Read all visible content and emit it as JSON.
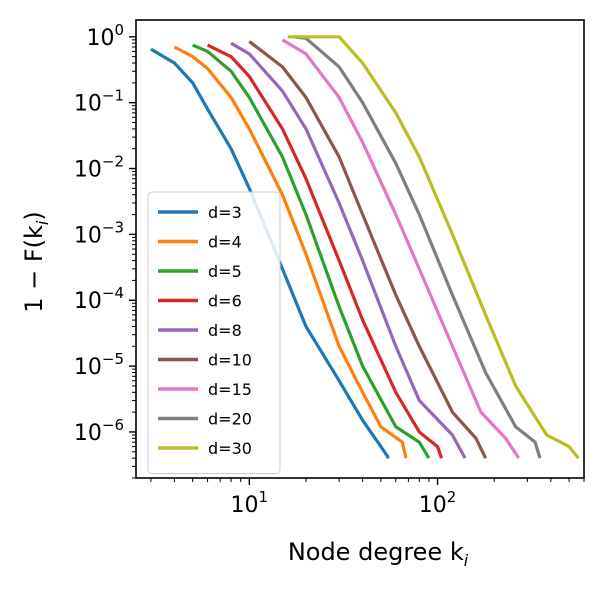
{
  "chart_data": {
    "type": "line",
    "title": "",
    "xlabel": "Node degree k",
    "xlabel_sub": "i",
    "ylabel": "1 − F(k",
    "ylabel_sub": "i",
    "ylabel_close": ")",
    "x_scale": "log",
    "y_scale": "log",
    "xlim": [
      2.5,
      600
    ],
    "ylim": [
      2e-07,
      1.8
    ],
    "grid": false,
    "legend_position": "lower-left",
    "x_ticks": [
      {
        "value": 10,
        "base": "10",
        "exp": "1"
      },
      {
        "value": 100,
        "base": "10",
        "exp": "2"
      }
    ],
    "y_ticks": [
      {
        "value": 1,
        "base": "10",
        "exp": "0"
      },
      {
        "value": 0.1,
        "base": "10",
        "exp": "−1"
      },
      {
        "value": 0.01,
        "base": "10",
        "exp": "−2"
      },
      {
        "value": 0.001,
        "base": "10",
        "exp": "−3"
      },
      {
        "value": 0.0001,
        "base": "10",
        "exp": "−4"
      },
      {
        "value": 1e-05,
        "base": "10",
        "exp": "−5"
      },
      {
        "value": 1e-06,
        "base": "10",
        "exp": "−6"
      }
    ],
    "series": [
      {
        "name": "d=3",
        "color": "#1f77b4",
        "points": [
          [
            3,
            0.65
          ],
          [
            4,
            0.4
          ],
          [
            5,
            0.2
          ],
          [
            6,
            0.08
          ],
          [
            8,
            0.02
          ],
          [
            10,
            0.005
          ],
          [
            15,
            0.0003
          ],
          [
            20,
            4e-05
          ],
          [
            30,
            6e-06
          ],
          [
            40,
            1.5e-06
          ],
          [
            50,
            6e-07
          ],
          [
            55,
            4e-07
          ]
        ]
      },
      {
        "name": "d=4",
        "color": "#ff7f0e",
        "points": [
          [
            4,
            0.7
          ],
          [
            5,
            0.5
          ],
          [
            6,
            0.33
          ],
          [
            8,
            0.12
          ],
          [
            10,
            0.04
          ],
          [
            15,
            0.004
          ],
          [
            20,
            0.0005
          ],
          [
            30,
            2e-05
          ],
          [
            40,
            4e-06
          ],
          [
            50,
            1.2e-06
          ],
          [
            65,
            7e-07
          ],
          [
            68,
            4e-07
          ]
        ]
      },
      {
        "name": "d=5",
        "color": "#2ca02c",
        "points": [
          [
            5,
            0.75
          ],
          [
            6,
            0.6
          ],
          [
            8,
            0.3
          ],
          [
            10,
            0.12
          ],
          [
            15,
            0.015
          ],
          [
            20,
            0.002
          ],
          [
            30,
            8e-05
          ],
          [
            40,
            1e-05
          ],
          [
            60,
            1.2e-06
          ],
          [
            80,
            7e-07
          ],
          [
            90,
            4e-07
          ]
        ]
      },
      {
        "name": "d=6",
        "color": "#d62728",
        "points": [
          [
            6,
            0.75
          ],
          [
            8,
            0.5
          ],
          [
            10,
            0.25
          ],
          [
            15,
            0.04
          ],
          [
            20,
            0.007
          ],
          [
            30,
            0.0004
          ],
          [
            40,
            5e-05
          ],
          [
            60,
            4e-06
          ],
          [
            80,
            1e-06
          ],
          [
            100,
            6e-07
          ],
          [
            105,
            4e-07
          ]
        ]
      },
      {
        "name": "d=8",
        "color": "#9467bd",
        "points": [
          [
            8,
            0.8
          ],
          [
            10,
            0.55
          ],
          [
            15,
            0.15
          ],
          [
            20,
            0.04
          ],
          [
            30,
            0.003
          ],
          [
            40,
            0.0004
          ],
          [
            60,
            2e-05
          ],
          [
            80,
            3e-06
          ],
          [
            120,
            9e-07
          ],
          [
            140,
            4e-07
          ]
        ]
      },
      {
        "name": "d=10",
        "color": "#8c564b",
        "points": [
          [
            10,
            0.85
          ],
          [
            15,
            0.35
          ],
          [
            20,
            0.12
          ],
          [
            30,
            0.015
          ],
          [
            40,
            0.002
          ],
          [
            60,
            0.00012
          ],
          [
            80,
            2e-05
          ],
          [
            120,
            2e-06
          ],
          [
            160,
            8e-07
          ],
          [
            180,
            4e-07
          ]
        ]
      },
      {
        "name": "d=15",
        "color": "#e377c2",
        "points": [
          [
            15,
            0.9
          ],
          [
            20,
            0.55
          ],
          [
            30,
            0.12
          ],
          [
            40,
            0.025
          ],
          [
            60,
            0.002
          ],
          [
            80,
            0.0003
          ],
          [
            120,
            2e-05
          ],
          [
            170,
            2e-06
          ],
          [
            230,
            8e-07
          ],
          [
            270,
            4e-07
          ]
        ]
      },
      {
        "name": "d=20",
        "color": "#7f7f7f",
        "points": [
          [
            17,
            1.0
          ],
          [
            20,
            0.95
          ],
          [
            30,
            0.35
          ],
          [
            40,
            0.1
          ],
          [
            60,
            0.012
          ],
          [
            80,
            0.002
          ],
          [
            120,
            0.00012
          ],
          [
            180,
            8e-06
          ],
          [
            260,
            1.2e-06
          ],
          [
            330,
            7e-07
          ],
          [
            350,
            4e-07
          ]
        ]
      },
      {
        "name": "d=30",
        "color": "#bcbd22",
        "points": [
          [
            16,
            1.0
          ],
          [
            30,
            1.0
          ],
          [
            40,
            0.4
          ],
          [
            60,
            0.07
          ],
          [
            80,
            0.015
          ],
          [
            120,
            0.001
          ],
          [
            180,
            6e-05
          ],
          [
            260,
            5e-06
          ],
          [
            380,
            9e-07
          ],
          [
            500,
            6e-07
          ],
          [
            560,
            4e-07
          ]
        ]
      }
    ]
  }
}
